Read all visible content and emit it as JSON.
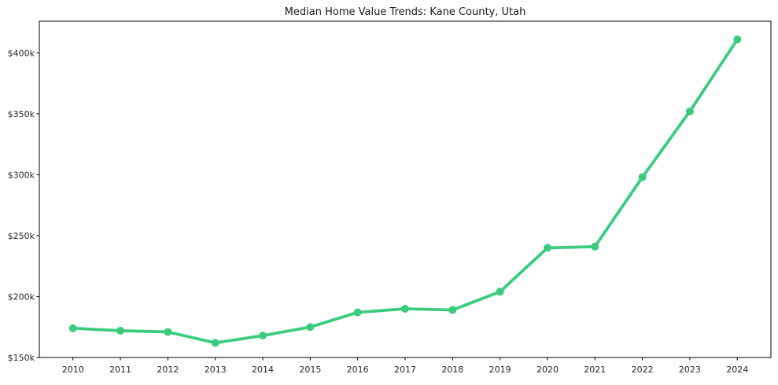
{
  "chart_data": {
    "type": "line",
    "title": "Median Home Value Trends: Kane County, Utah",
    "x": [
      2010,
      2011,
      2012,
      2013,
      2014,
      2015,
      2016,
      2017,
      2018,
      2019,
      2020,
      2021,
      2022,
      2023,
      2024
    ],
    "values": [
      174,
      172,
      171,
      162,
      168,
      175,
      187,
      190,
      189,
      204,
      240,
      241,
      298,
      352,
      411
    ],
    "unit": "USD thousands",
    "xlabel": "",
    "ylabel": "",
    "ylim": [
      150,
      426
    ],
    "yticks": {
      "values": [
        150,
        200,
        250,
        300,
        350,
        400
      ],
      "labels": [
        "$150k",
        "$200k",
        "$250k",
        "$300k",
        "$350k",
        "$400k"
      ]
    },
    "xtick_labels": [
      "2010",
      "2011",
      "2012",
      "2013",
      "2014",
      "2015",
      "2016",
      "2017",
      "2018",
      "2019",
      "2020",
      "2021",
      "2022",
      "2023",
      "2024"
    ],
    "grid": false,
    "legend": "none",
    "marker": "circle",
    "line_color": "#3bcc80",
    "axis_color": "#000000",
    "text_color": "#262626",
    "background": "#ffffff"
  }
}
